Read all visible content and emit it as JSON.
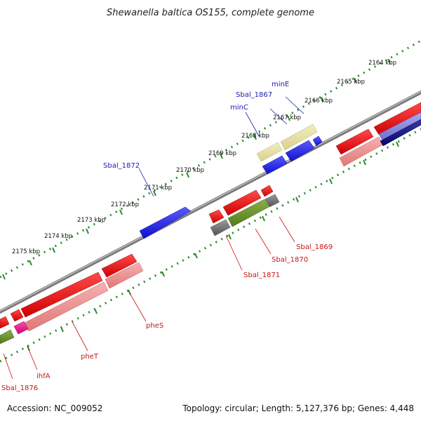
{
  "title": "Shewanella baltica OS155, complete genome",
  "footer": {
    "accession": "Accession: NC_009052",
    "summary": "Topology: circular; Length: 5,127,376 bp; Genes: 4,448"
  },
  "ticks": [
    "2164 kbp",
    "2165 kbp",
    "2166 kbp",
    "2167 kbp",
    "2168 kbp",
    "2169 kbp",
    "2170 kbp",
    "2171 kbp",
    "2172 kbp",
    "2173 kbp",
    "2174 kbp",
    "2175 kbp"
  ],
  "genes": {
    "sbal_1867": "Sbal_1867",
    "minE": "minE",
    "minC": "minC",
    "sbal_1872": "Sbal_1872",
    "sbal_1869": "Sbal_1869",
    "sbal_1870": "Sbal_1870",
    "sbal_1871": "Sbal_1871",
    "pheS": "pheS",
    "pheT": "pheT",
    "ihfA": "ihfA",
    "sbal_1876": "Sbal_1876"
  },
  "colors": {
    "backbone": "#8c8c8c",
    "tick": "#2a8a2a",
    "forward_gene": "#1e1ee6",
    "reverse_gene": "#e61414",
    "reverse_light": "#f08c8c",
    "yellow_gene": "#e6e0a0",
    "olive_gene": "#6e9628",
    "grey_gene": "#6e6e6e",
    "navy_gene": "#0a0a8c",
    "magenta_gene": "#e6148c"
  }
}
